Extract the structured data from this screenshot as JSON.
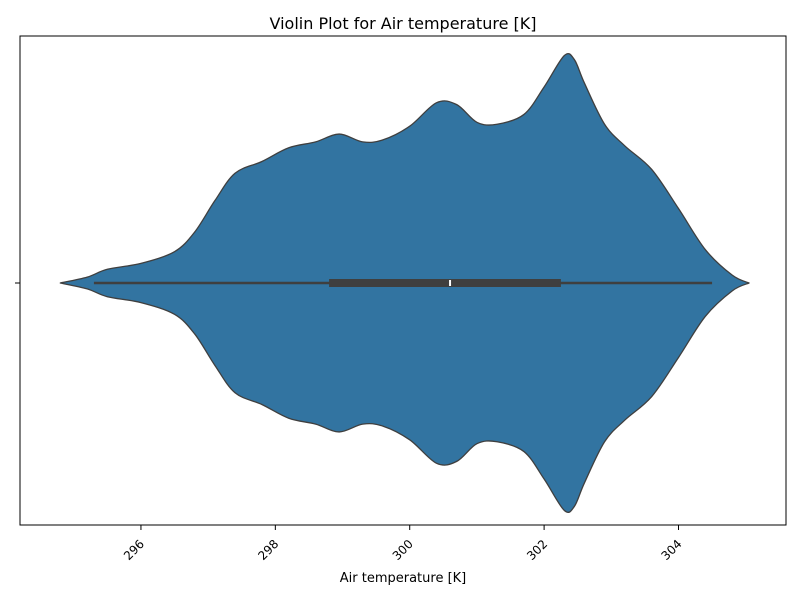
{
  "chart_data": {
    "type": "violin",
    "title": "Violin Plot for Air temperature [K]",
    "xlabel": "Air temperature [K]",
    "ylabel": "",
    "xlim": [
      294.2,
      305.6
    ],
    "x_ticks": [
      296,
      298,
      300,
      302,
      304
    ],
    "x_tick_labels": [
      "296",
      "298",
      "300",
      "302",
      "304"
    ],
    "y_tick_labels": [
      ""
    ],
    "grid": false,
    "legend": "none",
    "color": "#3274a1",
    "edge_color": "#3f3f3f",
    "box": {
      "whisker_low": 295.3,
      "q1": 298.8,
      "median": 300.6,
      "q3": 302.25,
      "whisker_high": 304.5,
      "color": "#3f3f3f",
      "median_color": "#ffffff"
    },
    "density": {
      "x": [
        294.8,
        295.2,
        295.5,
        296.0,
        296.5,
        296.8,
        297.1,
        297.4,
        297.8,
        298.2,
        298.6,
        298.95,
        299.3,
        299.6,
        300.0,
        300.4,
        300.7,
        301.0,
        301.3,
        301.7,
        302.0,
        302.3,
        302.45,
        302.6,
        302.9,
        303.2,
        303.6,
        304.0,
        304.4,
        304.8,
        305.05
      ],
      "density": [
        0.0,
        0.03,
        0.07,
        0.1,
        0.16,
        0.26,
        0.42,
        0.56,
        0.62,
        0.69,
        0.72,
        0.76,
        0.72,
        0.73,
        0.8,
        0.92,
        0.91,
        0.82,
        0.81,
        0.86,
        1.0,
        1.16,
        1.14,
        1.02,
        0.81,
        0.7,
        0.58,
        0.38,
        0.17,
        0.04,
        0.0
      ]
    }
  }
}
